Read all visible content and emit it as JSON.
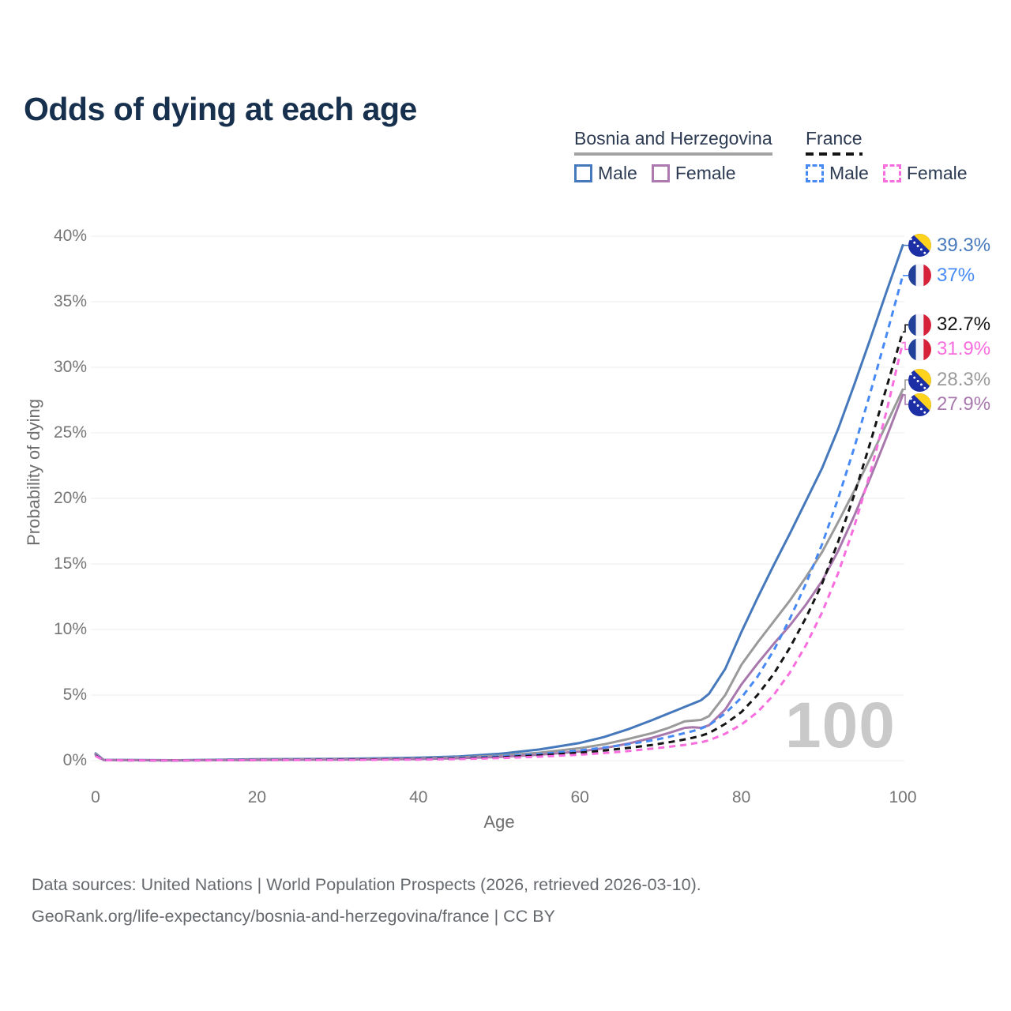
{
  "title": "Odds of dying at each age",
  "legend": {
    "groups": [
      {
        "title": "Bosnia and Herzegovina",
        "line_style": "solid",
        "line_color": "#a3a3a3",
        "items": [
          {
            "label": "Male",
            "color": "#4678bc",
            "dashed": false
          },
          {
            "label": "Female",
            "color": "#ac79b0",
            "dashed": false
          }
        ]
      },
      {
        "title": "France",
        "line_style": "dashed",
        "line_color": "#141414",
        "items": [
          {
            "label": "Male",
            "color": "#478af5",
            "dashed": true
          },
          {
            "label": "Female",
            "color": "#f96edf",
            "dashed": true
          }
        ]
      }
    ]
  },
  "chart_data": {
    "type": "line",
    "title": "Odds of dying at each age",
    "xlabel": "Age",
    "ylabel": "Probability of dying",
    "xlim": [
      0,
      100
    ],
    "ylim": [
      0,
      40
    ],
    "grid": "horizontal",
    "legend_position": "top-right",
    "age_indicator": "100",
    "xticks": [
      0,
      20,
      40,
      60,
      80,
      100
    ],
    "yticks": [
      {
        "value": 0,
        "label": "0%"
      },
      {
        "value": 5,
        "label": "5%"
      },
      {
        "value": 10,
        "label": "10%"
      },
      {
        "value": 15,
        "label": "15%"
      },
      {
        "value": 20,
        "label": "20%"
      },
      {
        "value": 25,
        "label": "25%"
      },
      {
        "value": 30,
        "label": "30%"
      },
      {
        "value": 35,
        "label": "35%"
      },
      {
        "value": 40,
        "label": "40%"
      }
    ],
    "x": [
      0,
      1,
      10,
      20,
      30,
      40,
      45,
      50,
      55,
      60,
      63,
      66,
      69,
      71,
      72,
      73,
      74,
      75,
      76,
      78,
      80,
      82,
      84,
      86,
      88,
      90,
      92,
      94,
      96,
      98,
      100
    ],
    "series": [
      {
        "id": "ba-male",
        "country": "Bosnia and Herzegovina",
        "sex": "Male",
        "color": "#4678bc",
        "dashed": false,
        "flag": "ba",
        "end_label": "39.3%",
        "end_value": 39.3,
        "values": [
          0.55,
          0.06,
          0.03,
          0.1,
          0.13,
          0.22,
          0.32,
          0.52,
          0.85,
          1.35,
          1.8,
          2.4,
          3.1,
          3.6,
          3.85,
          4.1,
          4.35,
          4.6,
          5.1,
          7.0,
          9.8,
          12.4,
          14.9,
          17.3,
          19.8,
          22.3,
          25.3,
          28.7,
          32.2,
          35.8,
          39.3
        ]
      },
      {
        "id": "ba-both",
        "country": "Bosnia and Herzegovina",
        "sex": "",
        "color": "#9a9a9a",
        "dashed": false,
        "flag": "ba",
        "end_label": "28.3%",
        "end_value": 28.3,
        "values": [
          0.5,
          0.05,
          0.02,
          0.07,
          0.1,
          0.16,
          0.24,
          0.38,
          0.6,
          0.95,
          1.25,
          1.65,
          2.1,
          2.5,
          2.75,
          3.0,
          3.05,
          3.1,
          3.4,
          5.0,
          7.3,
          9.0,
          10.6,
          12.2,
          14.0,
          15.9,
          18.2,
          20.6,
          23.1,
          25.7,
          28.3
        ]
      },
      {
        "id": "ba-female",
        "country": "Bosnia and Herzegovina",
        "sex": "Female",
        "color": "#a878ad",
        "dashed": false,
        "flag": "ba",
        "end_label": "27.9%",
        "end_value": 27.9,
        "values": [
          0.45,
          0.05,
          0.02,
          0.05,
          0.08,
          0.12,
          0.18,
          0.28,
          0.45,
          0.7,
          0.95,
          1.3,
          1.75,
          2.1,
          2.3,
          2.5,
          2.55,
          2.5,
          2.7,
          3.9,
          5.8,
          7.4,
          8.9,
          10.3,
          11.9,
          13.7,
          16.0,
          18.7,
          21.6,
          24.7,
          27.9
        ]
      },
      {
        "id": "fr-male",
        "country": "France",
        "sex": "Male",
        "color": "#478af5",
        "dashed": true,
        "flag": "fr",
        "end_label": "37%",
        "end_value": 37,
        "values": [
          0.4,
          0.03,
          0.01,
          0.06,
          0.09,
          0.14,
          0.2,
          0.32,
          0.5,
          0.78,
          1.0,
          1.25,
          1.55,
          1.8,
          1.95,
          2.1,
          2.25,
          2.45,
          2.7,
          3.6,
          4.8,
          6.4,
          8.4,
          10.8,
          13.5,
          16.5,
          20.0,
          23.9,
          28.1,
          32.5,
          37.0
        ]
      },
      {
        "id": "fr-both",
        "country": "France",
        "sex": "",
        "color": "#141414",
        "dashed": true,
        "flag": "fr",
        "end_label": "32.7%",
        "end_value": 32.7,
        "values": [
          0.38,
          0.03,
          0.01,
          0.05,
          0.07,
          0.11,
          0.16,
          0.25,
          0.4,
          0.6,
          0.77,
          0.97,
          1.2,
          1.4,
          1.5,
          1.62,
          1.75,
          1.9,
          2.1,
          2.8,
          3.7,
          5.0,
          6.6,
          8.6,
          10.9,
          13.5,
          16.7,
          20.3,
          24.3,
          28.5,
          32.7
        ]
      },
      {
        "id": "fr-female",
        "country": "France",
        "sex": "Female",
        "color": "#f96edf",
        "dashed": true,
        "flag": "fr",
        "end_label": "31.9%",
        "end_value": 31.9,
        "values": [
          0.35,
          0.03,
          0.01,
          0.04,
          0.05,
          0.08,
          0.12,
          0.19,
          0.3,
          0.45,
          0.58,
          0.73,
          0.92,
          1.05,
          1.13,
          1.2,
          1.3,
          1.4,
          1.55,
          2.05,
          2.75,
          3.7,
          5.0,
          6.7,
          8.8,
          11.3,
          14.3,
          17.9,
          22.0,
          26.7,
          31.9
        ]
      }
    ]
  },
  "footer": {
    "line1": "Data sources: United Nations | World Population Prospects (2026, retrieved 2026-03-10).",
    "line2": "GeoRank.org/life-expectancy/bosnia-and-herzegovina/france | CC BY"
  }
}
